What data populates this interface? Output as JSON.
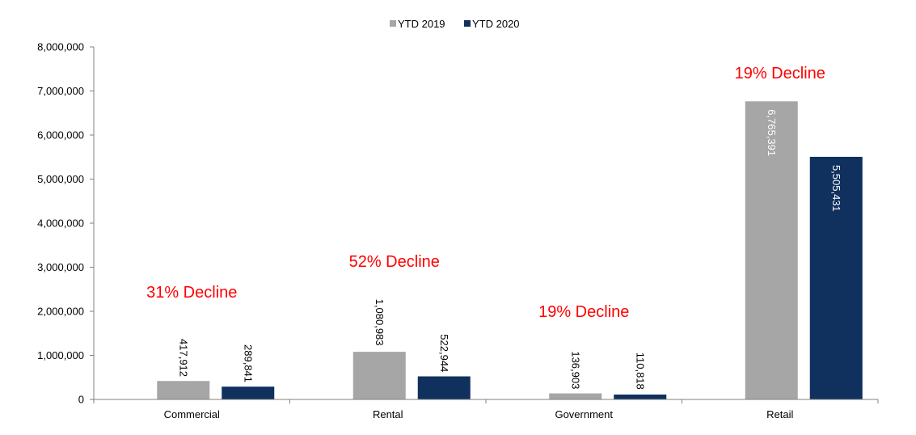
{
  "colors": {
    "ytd_2019": "#a6a6a6",
    "ytd_2020": "#10305e",
    "annotation": "#ff0000",
    "axis": "#808080"
  },
  "chart_data": {
    "type": "bar",
    "categories": [
      "Commercial",
      "Rental",
      "Government",
      "Retail"
    ],
    "series": [
      {
        "name": "YTD 2019",
        "values": [
          417912,
          1080983,
          136903,
          6765391
        ],
        "labels": [
          "417,912",
          "1,080,983",
          "136,903",
          "6,765,391"
        ]
      },
      {
        "name": "YTD 2020",
        "values": [
          289841,
          522944,
          110818,
          5505431
        ],
        "labels": [
          "289,841",
          "522,944",
          "110,818",
          "5,505,431"
        ]
      }
    ],
    "ylim": [
      0,
      8000000
    ],
    "yticks": [
      0,
      1000000,
      2000000,
      3000000,
      4000000,
      5000000,
      6000000,
      7000000,
      8000000
    ],
    "ytick_labels": [
      "0",
      "1,000,000",
      "2,000,000",
      "3,000,000",
      "4,000,000",
      "5,000,000",
      "6,000,000",
      "7,000,000",
      "8,000,000"
    ],
    "annotations": [
      "31% Decline",
      "52% Decline",
      "19% Decline",
      "19% Decline"
    ],
    "legend_position": "top-center",
    "grid": false
  }
}
